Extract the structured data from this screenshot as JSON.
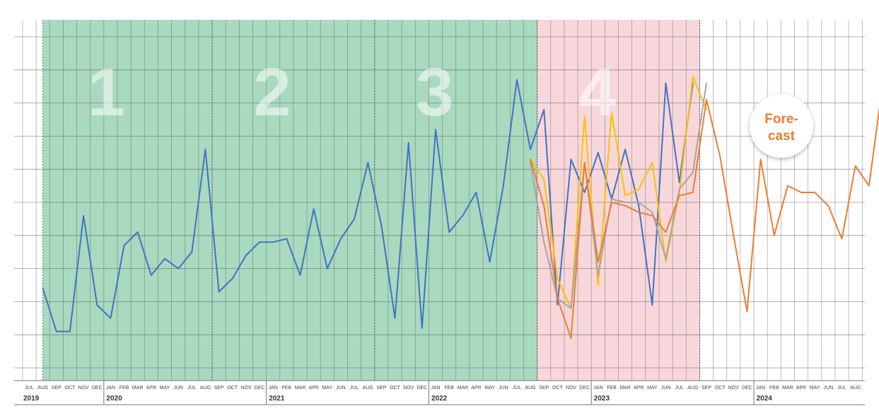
{
  "chart_data": {
    "type": "line",
    "x_start": {
      "month": "JUL",
      "year": "2019"
    },
    "month_labels": [
      "JUL",
      "AUG",
      "SEP",
      "OCT",
      "NOV",
      "DEC",
      "JAN",
      "FEB",
      "MAR",
      "APR",
      "MAY",
      "JUN",
      "JUL",
      "AUG",
      "SEP",
      "OCT",
      "NOV",
      "DEC",
      "JAN",
      "FEB",
      "MAR",
      "APR",
      "MAY",
      "JUN",
      "JUL",
      "AUG",
      "SEP",
      "OCT",
      "NOV",
      "DEC",
      "JAN",
      "FEB",
      "MAR",
      "APR",
      "MAY",
      "JUN",
      "JUL",
      "AUG",
      "SEP",
      "OCT",
      "NOV",
      "DEC",
      "JAN",
      "FEB",
      "MAR",
      "APR",
      "MAY",
      "JUN",
      "JUL",
      "AUG",
      "SEP",
      "OCT",
      "NOV",
      "DEC",
      "JAN",
      "FEB",
      "MAR",
      "APR",
      "MAY",
      "JUN",
      "JUL",
      "AUG"
    ],
    "year_labels": [
      {
        "label": "2019",
        "from_month": "JUL"
      },
      {
        "label": "2020",
        "from_month": "JAN"
      },
      {
        "label": "2021",
        "from_month": "JAN"
      },
      {
        "label": "2022",
        "from_month": "JAN"
      },
      {
        "label": "2023",
        "from_month": "JAN"
      },
      {
        "label": "2024",
        "from_month": "JAN"
      }
    ],
    "y_axis_labels": "none",
    "ylim": [
      0,
      10.5
    ],
    "grid": true,
    "phases": [
      {
        "label": "1",
        "color": "#A9D9BF"
      },
      {
        "label": "2",
        "color": "#A9D9BF"
      },
      {
        "label": "3",
        "color": "#A9D9BF"
      },
      {
        "label": "4",
        "color": "#F8D7DB"
      }
    ],
    "annotation": {
      "text_lines": [
        "Fore-",
        "cast"
      ],
      "color": "#ED7D31"
    },
    "series": [
      {
        "color": "#4472C4",
        "start_index": 1,
        "values": [
          2.4,
          1.1,
          1.1,
          4.6,
          1.9,
          1.5,
          3.7,
          4.1,
          2.8,
          3.3,
          3.0,
          3.5,
          6.6,
          2.3,
          2.7,
          3.4,
          3.8,
          3.8,
          3.9,
          2.8,
          4.8,
          3.0,
          3.9,
          4.5,
          6.2,
          4.3,
          1.5,
          6.8,
          1.2,
          7.2,
          4.1,
          4.6,
          5.3,
          3.2,
          5.5,
          8.7,
          6.6,
          7.8,
          1.9,
          6.3,
          5.3,
          6.5,
          5.1,
          6.6,
          4.9,
          1.9,
          8.6,
          5.6,
          8.6
        ]
      },
      {
        "color": "#FFC000",
        "start_index": 37,
        "values": [
          6.3,
          5.7,
          2.7,
          1.8,
          7.6,
          2.5,
          7.7,
          5.2,
          5.4,
          6.2,
          3.2,
          5.3,
          8.8,
          7.8
        ]
      },
      {
        "color": "#A5A5A5",
        "start_index": 37,
        "values": [
          6.2,
          3.8,
          2.1,
          1.8,
          6.2,
          2.8,
          5.1,
          5.0,
          5.0,
          4.7,
          3.3,
          5.4,
          5.9,
          8.6
        ]
      },
      {
        "color": "#ED7D31",
        "start_index": 37,
        "values": [
          6.3,
          4.9,
          2.1,
          0.9,
          6.2,
          3.2,
          5.0,
          4.9,
          4.7,
          4.6,
          4.1,
          5.2,
          5.3,
          8.1,
          6.4,
          4.0,
          1.7,
          6.3,
          4.0,
          5.5,
          5.3,
          5.3,
          4.9,
          3.9,
          6.1,
          5.5,
          8.5
        ]
      }
    ]
  }
}
